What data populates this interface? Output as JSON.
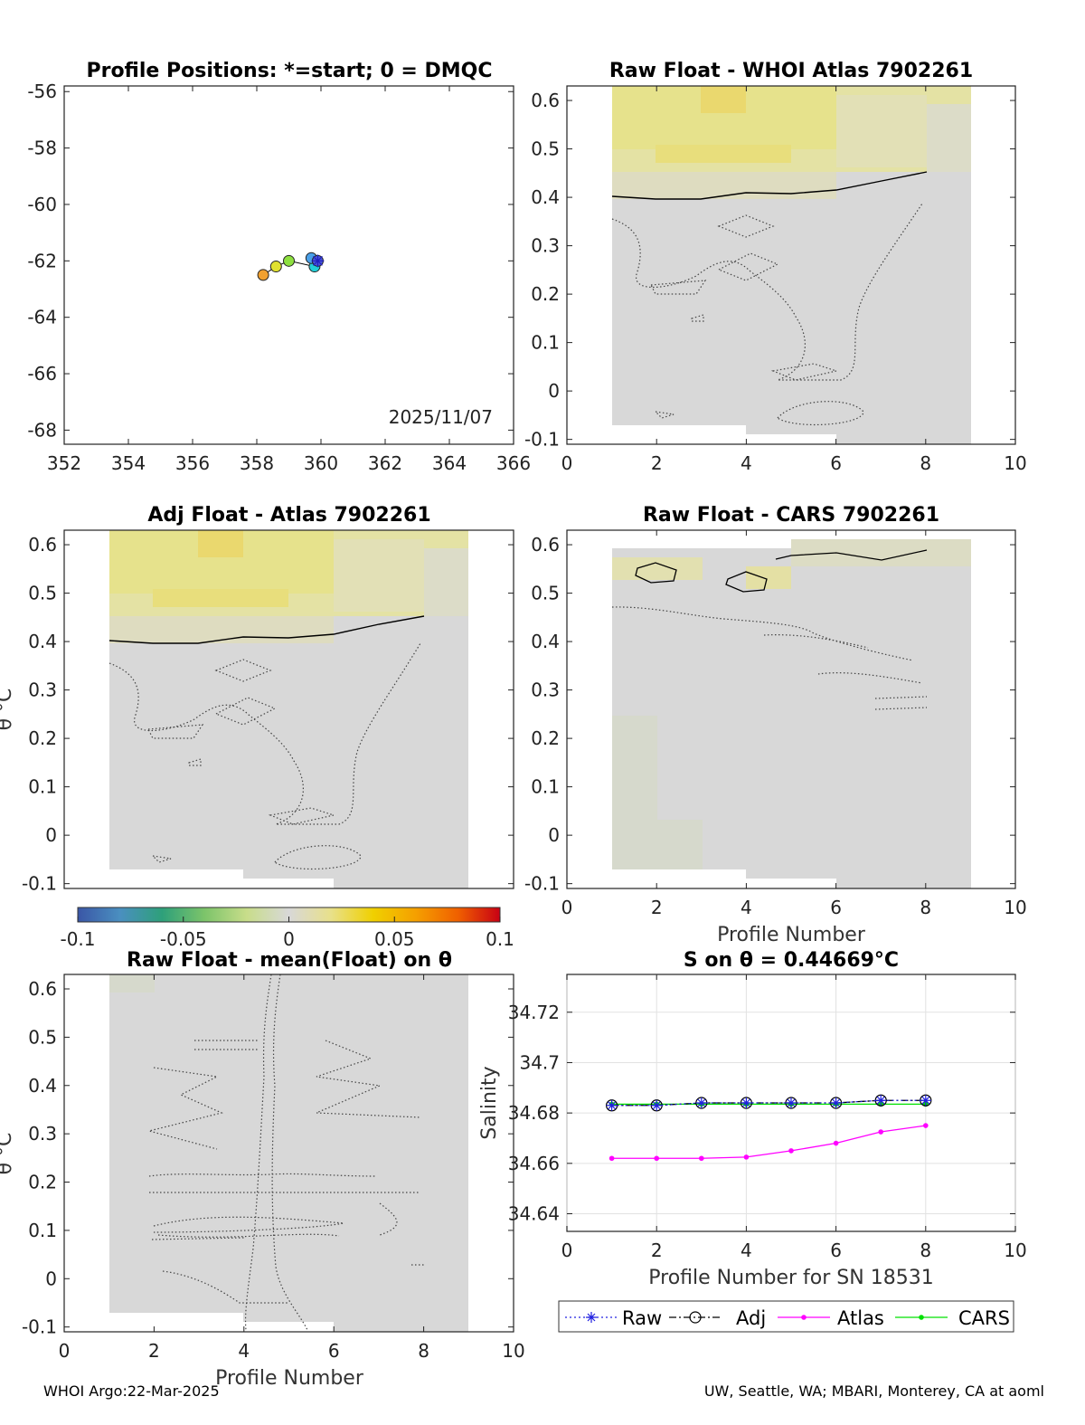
{
  "footer": {
    "left": "WHOI Argo:22-Mar-2025",
    "right": "UW, Seattle, WA; MBARI, Monterey, CA at aoml"
  },
  "colorbar": {
    "ticks": [
      "-0.1",
      "-0.05",
      "0",
      "0.05",
      "0.1"
    ],
    "range": [
      -0.1,
      0.1
    ],
    "colors": [
      "#3a56a6",
      "#4a8fc0",
      "#2ea07a",
      "#7cc46a",
      "#c8dd8a",
      "#d8d8d8",
      "#e8e08a",
      "#f0d000",
      "#f5a000",
      "#f06000",
      "#c80014"
    ]
  },
  "chart_data": [
    {
      "id": "positions",
      "type": "scatter",
      "title": "Profile Positions: *=start; 0 = DMQC",
      "annotation": "2025/11/07",
      "xlim": [
        352,
        366
      ],
      "ylim": [
        -68.5,
        -55.8
      ],
      "xticks": [
        "352",
        "354",
        "356",
        "358",
        "360",
        "362",
        "364",
        "366"
      ],
      "yticks": [
        "-56",
        "-58",
        "-60",
        "-62",
        "-64",
        "-66",
        "-68"
      ],
      "points": [
        {
          "x": 359.9,
          "y": -62.0,
          "color": "#4a55d8",
          "marker": "star"
        },
        {
          "x": 359.7,
          "y": -61.9,
          "color": "#4aa0e8",
          "marker": "circle"
        },
        {
          "x": 359.8,
          "y": -62.2,
          "color": "#22d0d8",
          "marker": "circle"
        },
        {
          "x": 359.0,
          "y": -62.0,
          "color": "#8ee040",
          "marker": "circle"
        },
        {
          "x": 358.6,
          "y": -62.2,
          "color": "#e0e030",
          "marker": "circle"
        },
        {
          "x": 358.2,
          "y": -62.5,
          "color": "#f0a030",
          "marker": "circle"
        }
      ]
    },
    {
      "id": "raw-atlas",
      "type": "heatmap",
      "title": "Raw Float - WHOI Atlas  7902261",
      "xlim": [
        0,
        10
      ],
      "ylim": [
        -0.11,
        0.63
      ],
      "xticks": [
        "0",
        "2",
        "4",
        "6",
        "8",
        "10"
      ],
      "yticks": [
        "0.6",
        "0.5",
        "0.4",
        "0.3",
        "0.2",
        "0.1",
        "0",
        "-0.1"
      ],
      "xlabel": "",
      "ylabel": ""
    },
    {
      "id": "adj-atlas",
      "type": "heatmap",
      "title": "Adj Float - Atlas  7902261",
      "xlim": [
        0,
        10
      ],
      "ylim": [
        -0.11,
        0.63
      ],
      "xticks": [],
      "yticks": [
        "0.6",
        "0.5",
        "0.4",
        "0.3",
        "0.2",
        "0.1",
        "0",
        "-0.1"
      ],
      "xlabel": "",
      "ylabel": "θ °C"
    },
    {
      "id": "raw-cars",
      "type": "heatmap",
      "title": "Raw Float - CARS  7902261",
      "xlim": [
        0,
        10
      ],
      "ylim": [
        -0.11,
        0.63
      ],
      "xticks": [
        "0",
        "2",
        "4",
        "6",
        "8",
        "10"
      ],
      "yticks": [
        "0.6",
        "0.5",
        "0.4",
        "0.3",
        "0.2",
        "0.1",
        "0",
        "-0.1"
      ],
      "xlabel": "Profile Number",
      "ylabel": ""
    },
    {
      "id": "raw-mean",
      "type": "heatmap",
      "title": "Raw Float - mean(Float) on θ",
      "xlim": [
        0,
        10
      ],
      "ylim": [
        -0.11,
        0.63
      ],
      "xticks": [
        "0",
        "2",
        "4",
        "6",
        "8",
        "10"
      ],
      "yticks": [
        "0.6",
        "0.5",
        "0.4",
        "0.3",
        "0.2",
        "0.1",
        "0",
        "-0.1"
      ],
      "xlabel": "Profile Number",
      "ylabel": "θ °C"
    },
    {
      "id": "salinity",
      "type": "line",
      "title": "S on θ = 0.44669°C",
      "xlim": [
        0,
        10
      ],
      "ylim": [
        34.633,
        34.735
      ],
      "xticks": [
        "0",
        "2",
        "4",
        "6",
        "8",
        "10"
      ],
      "yticks": [
        "34.72",
        "34.7",
        "34.68",
        "34.66",
        "34.64"
      ],
      "xlabel": "Profile Number for SN 18531",
      "ylabel": "Salinity",
      "grid": true,
      "legend": "bottom",
      "x": [
        1,
        2,
        3,
        4,
        5,
        6,
        7,
        8
      ],
      "series": [
        {
          "name": "Raw",
          "color": "#2020e0",
          "style": "dotted",
          "marker": "star",
          "values": [
            34.683,
            34.683,
            34.684,
            34.684,
            34.684,
            34.684,
            34.685,
            34.685
          ]
        },
        {
          "name": "Adj",
          "color": "#000000",
          "style": "dashdot",
          "marker": "circle",
          "values": [
            34.683,
            34.683,
            34.684,
            34.684,
            34.684,
            34.684,
            34.685,
            34.685
          ]
        },
        {
          "name": "Atlas",
          "color": "#ff00ff",
          "style": "solid",
          "marker": "dot",
          "values": [
            34.662,
            34.662,
            34.662,
            34.6625,
            34.665,
            34.668,
            34.6725,
            34.675
          ]
        },
        {
          "name": "CARS",
          "color": "#00e000",
          "style": "solid",
          "marker": "dot",
          "values": [
            34.6835,
            34.6835,
            34.6835,
            34.6835,
            34.6835,
            34.6835,
            34.6835,
            34.6835
          ]
        }
      ]
    }
  ]
}
